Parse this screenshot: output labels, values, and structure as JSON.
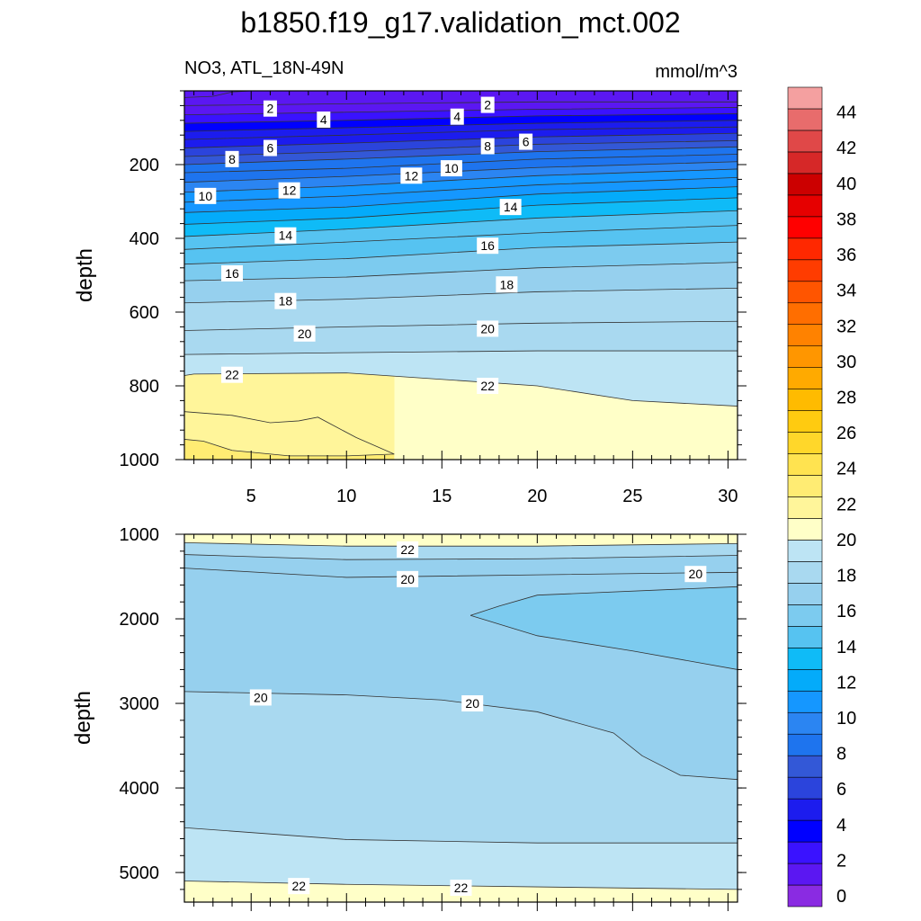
{
  "figure": {
    "title": "b1850.f19_g17.validation_mct.002",
    "variable_label": "NO3, ATL_18N-49N",
    "units_label": "mmol/m^3"
  },
  "colorbar": {
    "tick_labels": [
      "0",
      "2",
      "4",
      "6",
      "8",
      "10",
      "12",
      "14",
      "16",
      "18",
      "20",
      "22",
      "24",
      "26",
      "28",
      "30",
      "32",
      "34",
      "36",
      "38",
      "40",
      "42",
      "44"
    ],
    "colors": [
      "#8a2be2",
      "#5b17f2",
      "#3a12ff",
      "#0000ff",
      "#1c1cee",
      "#2b44dc",
      "#3358d7",
      "#1e74ee",
      "#2b85f2",
      "#1597ff",
      "#04abfa",
      "#0fbbf7",
      "#56c3f1",
      "#7ccbef",
      "#96d0ee",
      "#a9d9f0",
      "#bde4f4",
      "#ffffc8",
      "#fff59a",
      "#ffec73",
      "#ffe350",
      "#ffd72a",
      "#ffcb10",
      "#ffbb00",
      "#ffaa00",
      "#ff9600",
      "#ff8200",
      "#ff6e00",
      "#ff5500",
      "#ff3c00",
      "#ff2800",
      "#ff0000",
      "#e60000",
      "#cc0000",
      "#d62828",
      "#e04848",
      "#e86c6c",
      "#f4a0a0"
    ]
  },
  "chart_data": [
    {
      "type": "contour",
      "panel": "upper",
      "title": "NO3, ATL_18N-49N",
      "units": "mmol/m^3",
      "xlabel": "",
      "ylabel": "depth",
      "xlim": [
        1.5,
        30.5
      ],
      "ylim": [
        1000,
        0
      ],
      "x_ticks": [
        "5",
        "10",
        "15",
        "20",
        "25",
        "30"
      ],
      "y_ticks": [
        "200",
        "400",
        "600",
        "800",
        "1000"
      ],
      "isolines": [
        {
          "level": 0,
          "x": [
            1.5,
            3,
            4,
            5,
            30.5
          ],
          "y": [
            18,
            15,
            3,
            0,
            0
          ]
        },
        {
          "level": 1,
          "x": [
            1.5,
            10,
            20,
            30.5
          ],
          "y": [
            40,
            35,
            30,
            30
          ]
        },
        {
          "level": 2,
          "x": [
            1.5,
            10,
            20,
            30.5
          ],
          "y": [
            65,
            58,
            50,
            45
          ]
        },
        {
          "level": 3,
          "x": [
            1.5,
            10,
            20,
            30.5
          ],
          "y": [
            88,
            80,
            68,
            62
          ]
        },
        {
          "level": 4,
          "x": [
            1.5,
            10,
            20,
            30.5
          ],
          "y": [
            110,
            100,
            88,
            80
          ]
        },
        {
          "level": 5,
          "x": [
            1.5,
            10,
            20,
            30.5
          ],
          "y": [
            132,
            120,
            105,
            98
          ]
        },
        {
          "level": 6,
          "x": [
            1.5,
            10,
            20,
            30.5
          ],
          "y": [
            155,
            142,
            125,
            115
          ]
        },
        {
          "level": 7,
          "x": [
            1.5,
            10,
            20,
            30.5
          ],
          "y": [
            178,
            165,
            145,
            135
          ]
        },
        {
          "level": 8,
          "x": [
            1.5,
            10,
            20,
            30.5
          ],
          "y": [
            200,
            185,
            165,
            152
          ]
        },
        {
          "level": 9,
          "x": [
            1.5,
            10,
            20,
            30.5
          ],
          "y": [
            222,
            210,
            185,
            172
          ]
        },
        {
          "level": 10,
          "x": [
            1.5,
            10,
            20,
            30.5
          ],
          "y": [
            248,
            232,
            208,
            192
          ]
        },
        {
          "level": 11,
          "x": [
            1.5,
            10,
            20,
            30.5
          ],
          "y": [
            275,
            258,
            230,
            212
          ]
        },
        {
          "level": 12,
          "x": [
            1.5,
            10,
            20,
            30.5
          ],
          "y": [
            302,
            285,
            255,
            235
          ]
        },
        {
          "level": 13,
          "x": [
            1.5,
            10,
            20,
            30.5
          ],
          "y": [
            330,
            315,
            280,
            260
          ]
        },
        {
          "level": 14,
          "x": [
            1.5,
            10,
            20,
            30.5
          ],
          "y": [
            362,
            345,
            310,
            290
          ]
        },
        {
          "level": 15,
          "x": [
            1.5,
            10,
            20,
            30.5
          ],
          "y": [
            395,
            375,
            345,
            325
          ]
        },
        {
          "level": 16,
          "x": [
            1.5,
            10,
            20,
            30.5
          ],
          "y": [
            430,
            410,
            385,
            365
          ]
        },
        {
          "level": 17,
          "x": [
            1.5,
            10,
            20,
            30.5
          ],
          "y": [
            470,
            455,
            425,
            410
          ]
        },
        {
          "level": 18,
          "x": [
            1.5,
            10,
            20,
            30.5
          ],
          "y": [
            515,
            505,
            480,
            465
          ]
        },
        {
          "level": 19,
          "x": [
            1.5,
            10,
            20,
            30.5
          ],
          "y": [
            575,
            565,
            545,
            535
          ]
        },
        {
          "level": 20,
          "x": [
            1.5,
            10,
            20,
            30.5
          ],
          "y": [
            650,
            640,
            630,
            625
          ]
        },
        {
          "level": 21,
          "x": [
            1.5,
            10,
            20,
            30.5
          ],
          "y": [
            715,
            710,
            705,
            705
          ]
        },
        {
          "level": 22,
          "x": [
            1.5,
            2,
            10,
            20,
            25,
            30.5
          ],
          "y": [
            772,
            768,
            765,
            800,
            840,
            855
          ]
        },
        {
          "level": 23,
          "x": [
            1.5,
            4,
            6,
            7.5,
            8.5,
            10.5,
            12.5
          ],
          "y": [
            870,
            880,
            900,
            895,
            885,
            940,
            985
          ]
        },
        {
          "level": 24,
          "x": [
            1.5,
            2.5,
            4,
            7,
            10,
            12.5
          ],
          "y": [
            945,
            950,
            975,
            990,
            990,
            985
          ]
        }
      ],
      "contour_labels": [
        {
          "text": "2",
          "x": 6,
          "y": 48
        },
        {
          "text": "4",
          "x": 8.8,
          "y": 78
        },
        {
          "text": "2",
          "x": 17.4,
          "y": 38
        },
        {
          "text": "4",
          "x": 15.8,
          "y": 70
        },
        {
          "text": "6",
          "x": 6,
          "y": 155
        },
        {
          "text": "6",
          "x": 19.4,
          "y": 138
        },
        {
          "text": "8",
          "x": 4,
          "y": 185
        },
        {
          "text": "8",
          "x": 17.4,
          "y": 150
        },
        {
          "text": "10",
          "x": 2.6,
          "y": 285
        },
        {
          "text": "10",
          "x": 15.5,
          "y": 210
        },
        {
          "text": "12",
          "x": 7,
          "y": 270
        },
        {
          "text": "12",
          "x": 13.4,
          "y": 230
        },
        {
          "text": "14",
          "x": 6.8,
          "y": 392
        },
        {
          "text": "14",
          "x": 18.6,
          "y": 315
        },
        {
          "text": "16",
          "x": 4,
          "y": 495
        },
        {
          "text": "16",
          "x": 17.4,
          "y": 420
        },
        {
          "text": "18",
          "x": 6.8,
          "y": 570
        },
        {
          "text": "18",
          "x": 18.4,
          "y": 525
        },
        {
          "text": "20",
          "x": 7.8,
          "y": 658
        },
        {
          "text": "20",
          "x": 17.4,
          "y": 645
        },
        {
          "text": "22",
          "x": 4,
          "y": 770
        },
        {
          "text": "22",
          "x": 17.4,
          "y": 800
        }
      ]
    },
    {
      "type": "contour",
      "panel": "lower",
      "xlabel": "",
      "ylabel": "depth",
      "xlim": [
        1.5,
        30.5
      ],
      "ylim": [
        5350,
        1000
      ],
      "y_ticks": [
        "1000",
        "2000",
        "3000",
        "4000",
        "5000"
      ],
      "isolines": [
        {
          "level": 22,
          "x": [
            1.5,
            10,
            20,
            30.5
          ],
          "y": [
            1100,
            1140,
            1140,
            1110
          ]
        },
        {
          "level": 21,
          "x": [
            1.5,
            10,
            20,
            30.5
          ],
          "y": [
            1240,
            1300,
            1290,
            1250
          ]
        },
        {
          "level": 20.5,
          "x": [
            1.5,
            10,
            20,
            30.5
          ],
          "y": [
            1400,
            1510,
            1480,
            1450
          ]
        },
        {
          "level": 20,
          "x": [
            16.5,
            18,
            20,
            30.5
          ],
          "y": [
            1960,
            1850,
            1720,
            1620
          ]
        },
        {
          "level": 19.8,
          "x": [
            16.5,
            20,
            25,
            30.5
          ],
          "y": [
            1960,
            2200,
            2380,
            2600
          ]
        },
        {
          "level": 20.2,
          "x": [
            1.5,
            10,
            15,
            20,
            24,
            25.5,
            27.5,
            30.5
          ],
          "y": [
            2860,
            2900,
            2960,
            3100,
            3350,
            3620,
            3850,
            3900
          ]
        },
        {
          "level": 21.5,
          "x": [
            1.5,
            10,
            20,
            30.5
          ],
          "y": [
            4470,
            4610,
            4650,
            4650
          ]
        },
        {
          "level": 22.5,
          "x": [
            1.5,
            10,
            20,
            30.5
          ],
          "y": [
            5100,
            5140,
            5170,
            5200
          ]
        }
      ],
      "contour_labels": [
        {
          "text": "22",
          "x": 13.2,
          "y": 1180
        },
        {
          "text": "20",
          "x": 13.2,
          "y": 1530
        },
        {
          "text": "20",
          "x": 28.3,
          "y": 1470
        },
        {
          "text": "20",
          "x": 5.5,
          "y": 2930
        },
        {
          "text": "20",
          "x": 16.6,
          "y": 3000
        },
        {
          "text": "22",
          "x": 7.5,
          "y": 5160
        },
        {
          "text": "22",
          "x": 16,
          "y": 5180
        }
      ]
    }
  ]
}
